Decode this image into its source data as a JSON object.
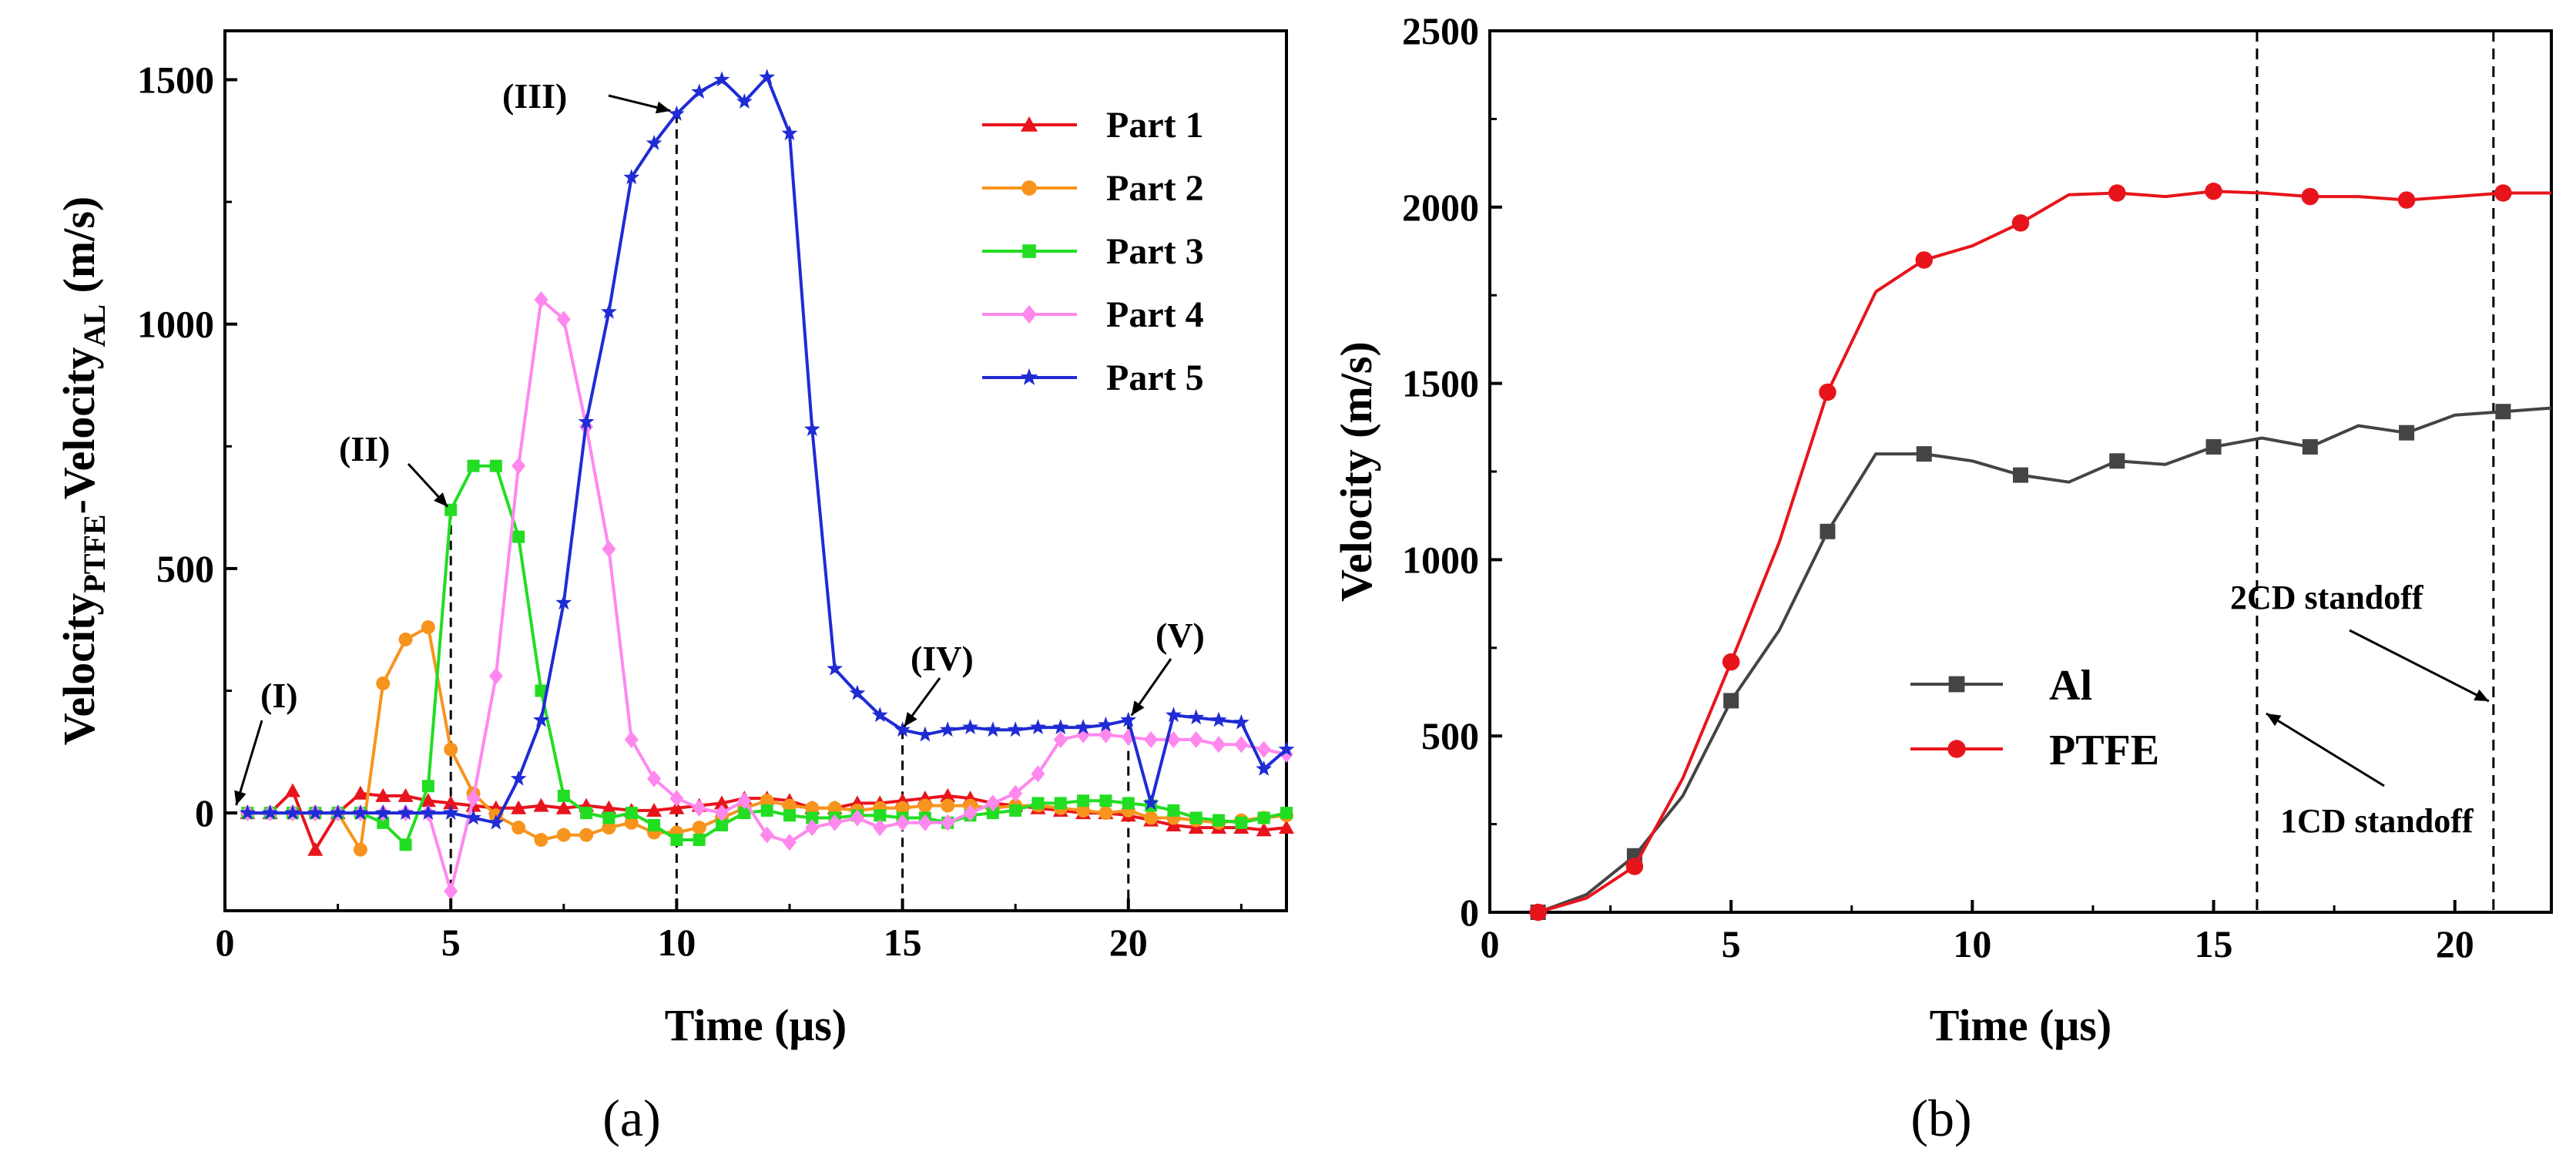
{
  "chart_data": [
    {
      "type": "line",
      "panel_label": "(a)",
      "xlabel": "Time (μs)",
      "ylabel": {
        "base1": "Velocity",
        "sub1": "PTFE",
        "base2": "-Velocity",
        "sub2": "AL",
        "units": " (m/s)"
      },
      "xlim": [
        0,
        23.5
      ],
      "ylim": [
        -200,
        1600
      ],
      "xticks": [
        "0",
        "5",
        "10",
        "15",
        "20"
      ],
      "yticks": [
        "0",
        "500",
        "1000",
        "1500"
      ],
      "series": [
        {
          "name": "Part 1",
          "color": "#e8141c",
          "marker": "triangle",
          "x": [
            0.5,
            1,
            1.5,
            2,
            2.5,
            3,
            3.5,
            4,
            4.5,
            5,
            5.5,
            6,
            6.5,
            7,
            7.5,
            8,
            8.5,
            9,
            9.5,
            10,
            10.5,
            11,
            11.5,
            12,
            12.5,
            13,
            13.5,
            14,
            14.5,
            15,
            15.5,
            16,
            16.5,
            17,
            17.5,
            18,
            18.5,
            19,
            19.5,
            20,
            20.5,
            21,
            21.5,
            22,
            22.5,
            23,
            23.5
          ],
          "y": [
            0,
            0,
            45,
            -75,
            0,
            40,
            35,
            35,
            25,
            20,
            15,
            10,
            10,
            15,
            10,
            15,
            10,
            5,
            5,
            10,
            15,
            20,
            30,
            30,
            25,
            10,
            10,
            20,
            20,
            25,
            30,
            35,
            30,
            20,
            15,
            10,
            5,
            0,
            0,
            -5,
            -15,
            -25,
            -30,
            -30,
            -30,
            -35,
            -30
          ]
        },
        {
          "name": "Part 2",
          "color": "#f7941d",
          "marker": "circle",
          "x": [
            0.5,
            1,
            1.5,
            2,
            2.5,
            3,
            3.5,
            4,
            4.5,
            5,
            5.5,
            6,
            6.5,
            7,
            7.5,
            8,
            8.5,
            9,
            9.5,
            10,
            10.5,
            11,
            11.5,
            12,
            12.5,
            13,
            13.5,
            14,
            14.5,
            15,
            15.5,
            16,
            16.5,
            17,
            17.5,
            18,
            18.5,
            19,
            19.5,
            20,
            20.5,
            21,
            21.5,
            22,
            22.5,
            23,
            23.5
          ],
          "y": [
            0,
            0,
            0,
            0,
            0,
            -75,
            265,
            355,
            380,
            130,
            40,
            -5,
            -30,
            -55,
            -45,
            -45,
            -30,
            -20,
            -40,
            -40,
            -30,
            -10,
            10,
            25,
            15,
            10,
            10,
            5,
            10,
            10,
            15,
            15,
            15,
            10,
            15,
            15,
            10,
            5,
            0,
            5,
            -10,
            -10,
            -15,
            -20,
            -15,
            -10,
            -5
          ]
        },
        {
          "name": "Part 3",
          "color": "#22dd22",
          "marker": "square",
          "x": [
            0.5,
            1,
            1.5,
            2,
            2.5,
            3,
            3.5,
            4,
            4.5,
            5,
            5.5,
            6,
            6.5,
            7,
            7.5,
            8,
            8.5,
            9,
            9.5,
            10,
            10.5,
            11,
            11.5,
            12,
            12.5,
            13,
            13.5,
            14,
            14.5,
            15,
            15.5,
            16,
            16.5,
            17,
            17.5,
            18,
            18.5,
            19,
            19.5,
            20,
            20.5,
            21,
            21.5,
            22,
            22.5,
            23,
            23.5
          ],
          "y": [
            0,
            0,
            0,
            0,
            0,
            0,
            -20,
            -65,
            55,
            620,
            710,
            710,
            565,
            250,
            35,
            0,
            -10,
            0,
            -25,
            -55,
            -55,
            -25,
            0,
            5,
            -5,
            -10,
            -10,
            -5,
            -5,
            -10,
            -10,
            -20,
            -5,
            0,
            5,
            20,
            20,
            25,
            25,
            20,
            15,
            5,
            -10,
            -15,
            -20,
            -10,
            0
          ]
        },
        {
          "name": "Part 4",
          "color": "#ff88ee",
          "marker": "diamond",
          "x": [
            0.5,
            1,
            1.5,
            2,
            2.5,
            3,
            3.5,
            4,
            4.5,
            5,
            5.5,
            6,
            6.5,
            7,
            7.5,
            8,
            8.5,
            9,
            9.5,
            10,
            10.5,
            11,
            11.5,
            12,
            12.5,
            13,
            13.5,
            14,
            14.5,
            15,
            15.5,
            16,
            16.5,
            17,
            17.5,
            18,
            18.5,
            19,
            19.5,
            20,
            20.5,
            21,
            21.5,
            22,
            22.5,
            23,
            23.5
          ],
          "y": [
            0,
            0,
            0,
            0,
            0,
            0,
            0,
            0,
            0,
            -160,
            30,
            280,
            710,
            1050,
            1010,
            790,
            540,
            150,
            70,
            30,
            10,
            0,
            25,
            -45,
            -60,
            -30,
            -20,
            -10,
            -30,
            -20,
            -20,
            -20,
            0,
            20,
            40,
            80,
            150,
            160,
            160,
            155,
            150,
            150,
            150,
            140,
            140,
            130,
            120
          ]
        },
        {
          "name": "Part 5",
          "color": "#1f2bd4",
          "marker": "star",
          "x": [
            0.5,
            1,
            1.5,
            2,
            2.5,
            3,
            3.5,
            4,
            4.5,
            5,
            5.5,
            6,
            6.5,
            7,
            7.5,
            8,
            8.5,
            9,
            9.5,
            10,
            10.5,
            11,
            11.5,
            12,
            12.5,
            13,
            13.5,
            14,
            14.5,
            15,
            15.5,
            16,
            16.5,
            17,
            17.5,
            18,
            18.5,
            19,
            19.5,
            20,
            20.5,
            21,
            21.5,
            22,
            22.5,
            23,
            23.5
          ],
          "y": [
            0,
            0,
            0,
            0,
            0,
            0,
            0,
            0,
            0,
            0,
            -10,
            -20,
            70,
            190,
            430,
            800,
            1025,
            1300,
            1370,
            1430,
            1475,
            1500,
            1455,
            1505,
            1390,
            785,
            295,
            245,
            200,
            170,
            160,
            170,
            175,
            170,
            170,
            175,
            175,
            175,
            180,
            190,
            20,
            200,
            195,
            190,
            185,
            90,
            130
          ]
        }
      ],
      "annotations": [
        {
          "label": "(I)",
          "x": 0.3,
          "y": 0
        },
        {
          "label": "(II)",
          "x": 5,
          "y": 620
        },
        {
          "label": "(III)",
          "x": 10,
          "y": 1430
        },
        {
          "label": "(IV)",
          "x": 15,
          "y": 170
        },
        {
          "label": "(V)",
          "x": 20,
          "y": 190
        }
      ],
      "vlines": [
        5,
        10,
        15,
        20
      ]
    },
    {
      "type": "line",
      "panel_label": "(b)",
      "xlabel": "Time (μs)",
      "ylabel": "Velocity (m/s)",
      "xlim": [
        0,
        22
      ],
      "ylim": [
        0,
        2500
      ],
      "xticks": [
        "0",
        "5",
        "10",
        "15",
        "20"
      ],
      "yticks": [
        "0",
        "500",
        "1000",
        "1500",
        "2000",
        "2500"
      ],
      "series": [
        {
          "name": "Al",
          "color": "#444444",
          "marker": "square",
          "x": [
            1,
            2,
            3,
            4,
            5,
            6,
            7,
            8,
            9,
            10,
            11,
            12,
            13,
            14,
            15,
            16,
            17,
            18,
            19,
            20,
            21,
            22
          ],
          "y": [
            0,
            50,
            160,
            330,
            600,
            800,
            1080,
            1300,
            1300,
            1280,
            1240,
            1220,
            1280,
            1270,
            1320,
            1345,
            1320,
            1380,
            1360,
            1410,
            1420,
            1430
          ],
          "marker_idx": [
            0,
            2,
            4,
            6,
            8,
            10,
            12,
            14,
            16,
            18,
            20
          ]
        },
        {
          "name": "PTFE",
          "color": "#e8141c",
          "marker": "circle",
          "x": [
            1,
            2,
            3,
            4,
            5,
            6,
            7,
            8,
            9,
            10,
            11,
            12,
            13,
            14,
            15,
            16,
            17,
            18,
            19,
            20,
            21,
            22
          ],
          "y": [
            0,
            40,
            130,
            380,
            710,
            1050,
            1475,
            1760,
            1850,
            1890,
            1955,
            2035,
            2040,
            2030,
            2045,
            2040,
            2030,
            2030,
            2020,
            2030,
            2040,
            2040
          ],
          "marker_idx": [
            0,
            2,
            4,
            6,
            8,
            10,
            12,
            14,
            16,
            18,
            20
          ]
        }
      ],
      "annotations": [
        {
          "label": "2CD standoff",
          "x": 20.8,
          "y": 610
        },
        {
          "label": "1CD standoff",
          "x": 15.9,
          "y": 560
        }
      ],
      "vlines": [
        15.9,
        20.8
      ]
    }
  ]
}
